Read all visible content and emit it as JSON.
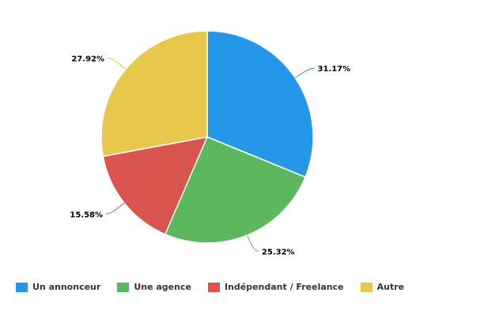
{
  "chart_data": {
    "type": "pie",
    "title": "",
    "series": [
      {
        "name": "Un annonceur",
        "value": 31.17,
        "label": "31.17%",
        "color": "#2597e8"
      },
      {
        "name": "Une agence",
        "value": 25.32,
        "label": "25.32%",
        "color": "#5cb85c"
      },
      {
        "name": "Indépendant / Freelance",
        "value": 15.58,
        "label": "15.58%",
        "color": "#d9534f"
      },
      {
        "name": "Autre",
        "value": 27.92,
        "label": "27.92%",
        "color": "#e8c84a"
      }
    ],
    "start_angle": "12 o'clock",
    "direction": "clockwise",
    "legend_position": "bottom-left"
  }
}
